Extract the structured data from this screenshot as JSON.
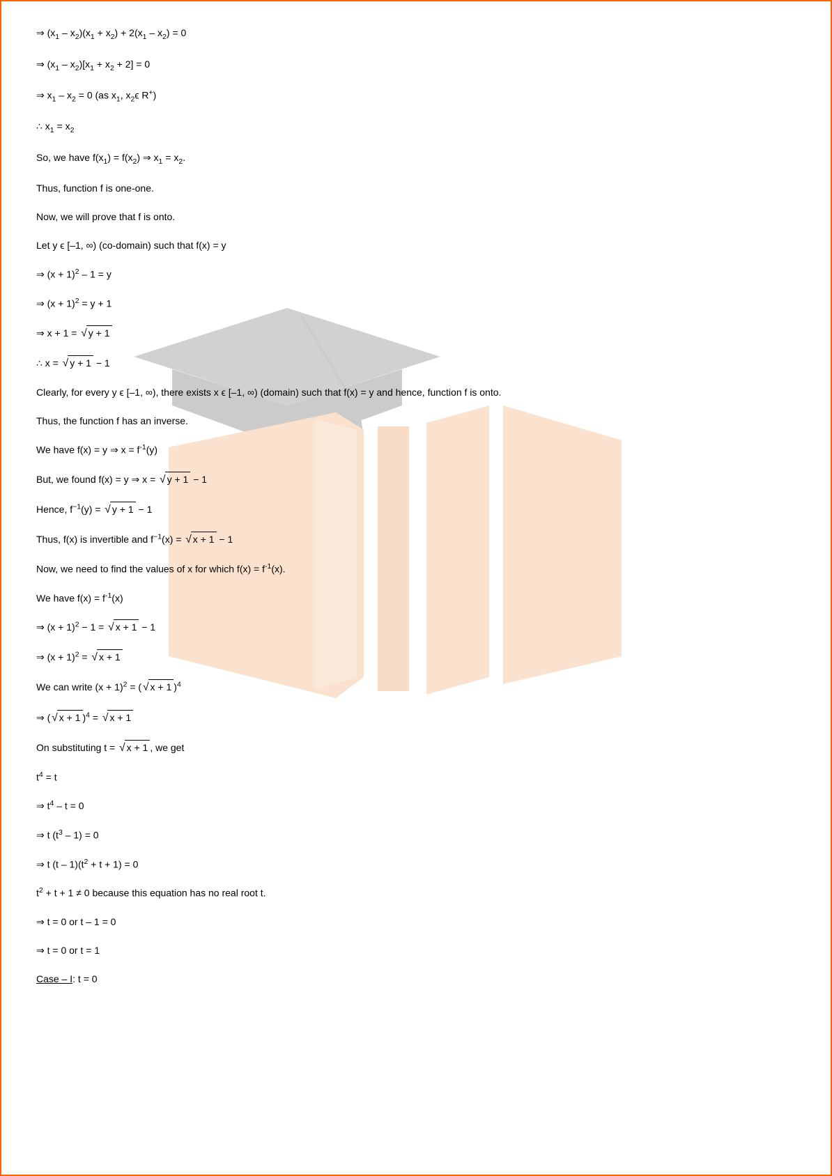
{
  "watermark": {
    "cap_color": "#9a9a9a",
    "cap_color_dark": "#8e8e8e",
    "cap_color_light": "#b5b5b5",
    "book_color": "#f5c095",
    "book_color_light": "#f7d0ae",
    "book_color_dark": "#f0b282"
  },
  "lines": [
    {
      "html": "⇒ (x<sub>1</sub> – x<sub>2</sub>)(x<sub>1</sub> + x<sub>2</sub>) + 2(x<sub>1</sub> – x<sub>2</sub>) = 0"
    },
    {
      "html": "⇒ (x<sub>1</sub> – x<sub>2</sub>)[x<sub>1</sub> + x<sub>2</sub> + 2] = 0"
    },
    {
      "html": "⇒ x<sub>1</sub> – x<sub>2</sub> = 0 (as x<sub>1</sub>, x<sub>2</sub>ϵ R<sup>+</sup>)"
    },
    {
      "html": "∴ x<sub>1</sub> = x<sub>2</sub>"
    },
    {
      "html": "So, we have f(x<sub>1</sub>) = f(x<sub>2</sub>) ⇒ x<sub>1</sub> = x<sub>2</sub>."
    },
    {
      "html": "Thus, function f is one-one."
    },
    {
      "html": "Now, we will prove that f is onto."
    },
    {
      "html": "Let y ϵ [–1, ∞) (co-domain) such that f(x) = y"
    },
    {
      "html": "⇒ (x + 1)<sup>2</sup> – 1 = y"
    },
    {
      "html": "⇒ (x + 1)<sup>2</sup> = y + 1"
    },
    {
      "html": "⇒ x + 1 = <span class='sqrt'><span class='sqrt-cont'>y + 1</span></span>"
    },
    {
      "html": "∴ x = <span class='sqrt'><span class='sqrt-cont'>y + 1</span></span> − 1"
    },
    {
      "html": "Clearly, for every y ϵ [–1, ∞), there exists x ϵ [–1, ∞) (domain) such that f(x) = y and hence, function f is onto."
    },
    {
      "html": "Thus, the function f has an inverse."
    },
    {
      "html": "We have f(x) = y ⇒ x = f<sup>-1</sup>(y)"
    },
    {
      "html": "But, we found f(x) = y ⇒ x = <span class='sqrt'><span class='sqrt-cont'>y + 1</span></span> − 1"
    },
    {
      "html": "Hence, f<sup>−1</sup>(y) = <span class='sqrt'><span class='sqrt-cont'>y + 1</span></span> − 1"
    },
    {
      "html": "Thus, f(x) is invertible and f<sup>−1</sup>(x) = <span class='sqrt'><span class='sqrt-cont'>x + 1</span></span> − 1"
    },
    {
      "html": "Now, we need to find the values of x for which f(x) = f<sup>-1</sup>(x)."
    },
    {
      "html": "We have f(x) = f<sup>-1</sup>(x)"
    },
    {
      "html": "⇒ (x + 1)<sup>2</sup> − 1 = <span class='sqrt'><span class='sqrt-cont'>x + 1</span></span> − 1"
    },
    {
      "html": "⇒ (x + 1)<sup>2</sup> = <span class='sqrt'><span class='sqrt-cont'>x + 1</span></span>"
    },
    {
      "html": "We can write (x + 1)<sup>2</sup> = (<span class='sqrt'><span class='sqrt-cont'>x + 1</span></span>)<sup>4</sup>"
    },
    {
      "html": "⇒ (<span class='sqrt'><span class='sqrt-cont'>x + 1</span></span>)<sup>4</sup> = <span class='sqrt'><span class='sqrt-cont'>x + 1</span></span>"
    },
    {
      "html": "On substituting t = <span class='sqrt'><span class='sqrt-cont'>x + 1</span></span>, we get"
    },
    {
      "html": "t<sup>4</sup> = t"
    },
    {
      "html": "⇒ t<sup>4</sup> – t = 0"
    },
    {
      "html": "⇒ t (t<sup>3</sup> – 1) = 0"
    },
    {
      "html": "⇒ t (t – 1)(t<sup>2</sup> + t + 1) = 0"
    },
    {
      "html": "t<sup>2</sup> + t + 1 ≠ 0 because this equation has no real root t."
    },
    {
      "html": "⇒ t = 0 or t – 1 = 0"
    },
    {
      "html": "⇒ t = 0 or t = 1"
    },
    {
      "html": "<span class='u'>Case – I</span>: t = 0"
    }
  ]
}
